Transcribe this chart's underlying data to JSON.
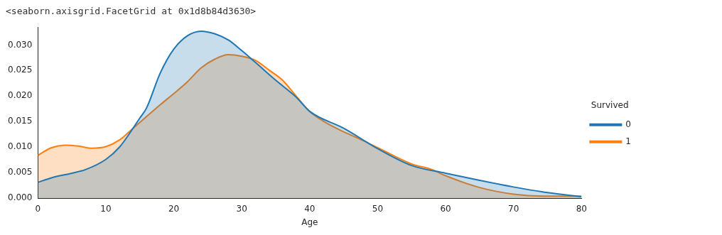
{
  "chart_data": {
    "type": "area",
    "xlabel": "Age",
    "legend_title": "Survived",
    "legend": "right",
    "grid": false,
    "annotations": [
      "<seaborn.axisgrid.FacetGrid at 0x1d8b84d3630>"
    ],
    "xlim": [
      0,
      80
    ],
    "xticks": [
      0,
      10,
      20,
      30,
      40,
      50,
      60,
      70,
      80
    ],
    "ylim": [
      0,
      0.0335
    ],
    "yticks": [
      {
        "value": 0,
        "label": "0.000"
      },
      {
        "value": 0.005,
        "label": "0.005"
      },
      {
        "value": 0.01,
        "label": "0.010"
      },
      {
        "value": 0.015,
        "label": "0.015"
      },
      {
        "value": 0.02,
        "label": "0.020"
      },
      {
        "value": 0.025,
        "label": "0.025"
      },
      {
        "value": 0.03,
        "label": "0.030"
      }
    ],
    "series": [
      {
        "name": "0",
        "color": "#1f77b4",
        "x": [
          0,
          2,
          5,
          7,
          10,
          12,
          14,
          15,
          16,
          18,
          20,
          22,
          24,
          26,
          28,
          30,
          32,
          35,
          38,
          40,
          45,
          50,
          55,
          60,
          65,
          70,
          75,
          80
        ],
        "values": [
          0.0031,
          0.004,
          0.0049,
          0.0056,
          0.0076,
          0.01,
          0.0137,
          0.0157,
          0.0177,
          0.0245,
          0.0292,
          0.0318,
          0.0327,
          0.0322,
          0.031,
          0.0289,
          0.0266,
          0.0231,
          0.0198,
          0.017,
          0.0137,
          0.0097,
          0.0064,
          0.0049,
          0.0035,
          0.0022,
          0.0011,
          0.0003
        ]
      },
      {
        "name": "1",
        "color": "#ff7f0e",
        "x": [
          0,
          2,
          4,
          6,
          8,
          10,
          12,
          14,
          16,
          18,
          20,
          22,
          24,
          26,
          28,
          30,
          32,
          34,
          36,
          38,
          40,
          42,
          45,
          48,
          50,
          55,
          58,
          60,
          65,
          70,
          75,
          80
        ],
        "values": [
          0.0084,
          0.0099,
          0.0104,
          0.0102,
          0.0098,
          0.0101,
          0.0114,
          0.0137,
          0.016,
          0.0183,
          0.0205,
          0.0228,
          0.0255,
          0.0272,
          0.0281,
          0.0278,
          0.027,
          0.0251,
          0.0231,
          0.02,
          0.017,
          0.0151,
          0.013,
          0.0112,
          0.0099,
          0.0067,
          0.0056,
          0.0044,
          0.0021,
          0.0008,
          0.0004,
          0.0004
        ]
      }
    ]
  }
}
